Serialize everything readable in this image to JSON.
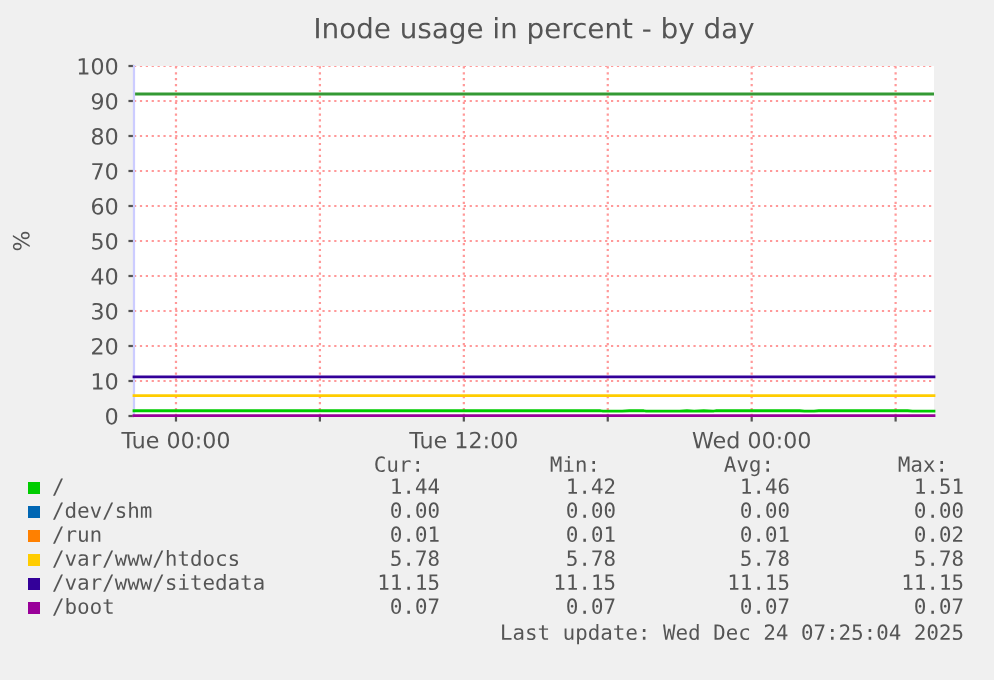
{
  "chart_data": {
    "type": "line",
    "title": "Inode usage in percent - by day",
    "ylabel": "%",
    "xlim": [
      "2025-12-22T22:15",
      "2025-12-24T07:36"
    ],
    "ylim": [
      0,
      100
    ],
    "xticks": [
      {
        "value": "2025-12-23T00:00",
        "label": "Tue 00:00"
      },
      {
        "value": "2025-12-23T06:00",
        "label": null
      },
      {
        "value": "2025-12-23T12:00",
        "label": "Tue 12:00"
      },
      {
        "value": "2025-12-23T18:00",
        "label": null
      },
      {
        "value": "2025-12-24T00:00",
        "label": "Wed 00:00"
      },
      {
        "value": "2025-12-24T06:00",
        "label": null
      }
    ],
    "yticks": [
      0,
      10,
      20,
      30,
      40,
      50,
      60,
      70,
      80,
      90,
      100
    ],
    "grid": true,
    "legend": "bottom",
    "marker": "none",
    "line_style": "solid",
    "ref_lines": [
      {
        "axis": "y",
        "value": 92,
        "color": "#339933"
      }
    ],
    "series": [
      {
        "name": "/",
        "color": "#00cc00",
        "x": [
          "2025-12-22T22:15",
          "2025-12-23T17:42",
          "2025-12-23T17:48",
          "2025-12-23T18:36",
          "2025-12-23T18:54",
          "2025-12-23T19:30",
          "2025-12-23T19:36",
          "2025-12-23T21:00",
          "2025-12-23T21:18",
          "2025-12-23T21:36",
          "2025-12-23T22:00",
          "2025-12-23T22:24",
          "2025-12-23T22:30",
          "2025-12-24T02:00",
          "2025-12-24T02:12",
          "2025-12-24T02:36",
          "2025-12-24T02:48",
          "2025-12-24T06:30",
          "2025-12-24T06:42",
          "2025-12-24T07:00",
          "2025-12-24T07:18",
          "2025-12-24T07:36"
        ],
        "values": [
          1.5,
          1.5,
          1.4,
          1.4,
          1.5,
          1.5,
          1.4,
          1.4,
          1.5,
          1.4,
          1.5,
          1.4,
          1.5,
          1.5,
          1.4,
          1.4,
          1.5,
          1.5,
          1.4,
          1.4,
          1.4,
          1.4
        ]
      },
      {
        "name": "/dev/shm",
        "color": "#0066b3"
      },
      {
        "name": "/run",
        "color": "#ff8000"
      },
      {
        "name": "/var/www/htdocs",
        "color": "#ffcc00",
        "x": [
          "2025-12-22T22:15",
          "2025-12-24T07:36"
        ],
        "values": [
          5.8,
          5.8
        ]
      },
      {
        "name": "/var/www/sitedata",
        "color": "#330099",
        "x": [
          "2025-12-22T22:15",
          "2025-12-24T07:36"
        ],
        "values": [
          11.2,
          11.2
        ]
      },
      {
        "name": "/boot",
        "color": "#990099",
        "x": [
          "2025-12-22T22:15",
          "2025-12-24T07:36"
        ],
        "values": [
          0.1,
          0.1
        ]
      }
    ],
    "annotations": [
      "Cur:",
      "Min:",
      "Avg:",
      "Max:",
      "1.44",
      "1.42",
      "1.46",
      "1.51",
      "0.00",
      "0.00",
      "0.00",
      "0.00",
      "0.01",
      "0.01",
      "0.01",
      "0.02",
      "5.78",
      "5.78",
      "5.78",
      "5.78",
      "11.15",
      "11.15",
      "11.15",
      "11.15",
      "0.07",
      "0.07",
      "0.07",
      "0.07",
      "Last update: Wed Dec 24 07:25:04 2025"
    ]
  }
}
